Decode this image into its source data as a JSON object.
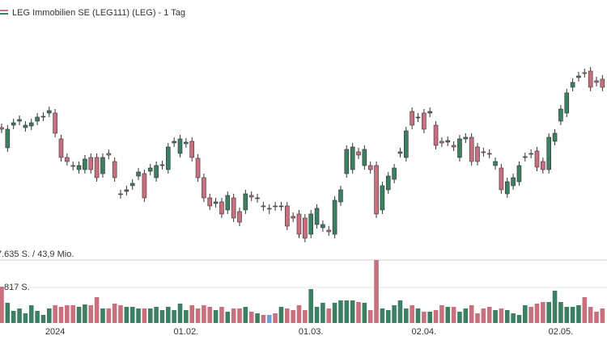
{
  "chart_data": {
    "type": "candlestick",
    "title": "LEG Immobilien SE (LEG111) (LEG) - 1 Tag",
    "categories": [
      null,
      null,
      null,
      null,
      null,
      null,
      null,
      null,
      null,
      "2024",
      null,
      null,
      null,
      null,
      null,
      null,
      null,
      null,
      null,
      null,
      null,
      null,
      null,
      null,
      null,
      null,
      null,
      null,
      null,
      null,
      null,
      "01.02.",
      null,
      null,
      null,
      null,
      null,
      null,
      null,
      null,
      null,
      null,
      null,
      null,
      null,
      null,
      null,
      null,
      null,
      null,
      null,
      null,
      "01.03.",
      null,
      null,
      null,
      null,
      null,
      null,
      null,
      null,
      null,
      null,
      null,
      null,
      null,
      null,
      null,
      null,
      null,
      null,
      "02.04.",
      null,
      null,
      null,
      null,
      null,
      null,
      null,
      null,
      null,
      null,
      null,
      null,
      null,
      null,
      null,
      null,
      null,
      null,
      null,
      null,
      null,
      null,
      "02.05.",
      null,
      null,
      null,
      null,
      null,
      null,
      null
    ],
    "open": [
      77.2,
      74.7,
      77.5,
      78.0,
      77.2,
      77.4,
      78.0,
      78.5,
      79.0,
      79.0,
      75.8,
      73.5,
      72.5,
      72.0,
      72.0,
      73.5,
      73.5,
      71.5,
      74.0,
      73.0,
      69.0,
      69.3,
      70.0,
      71.2,
      71.5,
      71.8,
      71.0,
      72.5,
      72.0,
      75.3,
      74.0,
      75.2,
      75.5,
      73.4,
      71.0,
      68.5,
      67.8,
      68.0,
      67.0,
      68.5,
      66.8,
      67.0,
      68.8,
      68.4,
      67.5,
      67.2,
      67.5,
      67.4,
      67.5,
      66.2,
      66.5,
      66.0,
      64.0,
      65.2,
      64.8,
      64.5,
      64.0,
      68.0,
      71.5,
      72.0,
      74.2,
      72.5,
      72.5,
      72.5,
      67.0,
      69.5,
      70.8,
      74.0,
      73.5,
      79.2,
      78.4,
      79.0,
      79.0,
      77.5,
      75.5,
      75.4,
      75.0,
      73.5,
      75.8,
      76.0,
      74.8,
      74.2,
      74.0,
      72.5,
      72.2,
      69.0,
      70.0,
      70.5,
      73.5,
      74.0,
      74.3,
      73.0,
      72.0,
      75.5,
      78.0,
      79.0,
      82.2,
      83.4,
      84.0,
      84.2,
      83.0,
      83.2
    ],
    "high": [
      77.7,
      77.5,
      78.3,
      78.7,
      78.0,
      78.3,
      79.0,
      79.1,
      79.8,
      79.5,
      76.3,
      74.0,
      73.0,
      73.0,
      73.8,
      74.0,
      74.0,
      74.0,
      74.5,
      73.5,
      69.5,
      70.0,
      70.8,
      72.2,
      72.0,
      72.7,
      73.0,
      73.1,
      75.3,
      76.0,
      76.3,
      75.9,
      76.0,
      73.9,
      71.5,
      69.0,
      68.5,
      68.5,
      69.3,
      69.0,
      67.3,
      69.5,
      69.3,
      69.0,
      68.0,
      67.7,
      68.0,
      68.0,
      68.0,
      66.7,
      67.0,
      66.5,
      67.0,
      67.7,
      65.7,
      65.0,
      68.7,
      70.0,
      75.0,
      75.3,
      74.7,
      75.0,
      73.0,
      73.0,
      70.5,
      71.7,
      72.7,
      74.7,
      77.3,
      79.7,
      79.0,
      79.5,
      79.7,
      78.0,
      76.0,
      76.1,
      75.5,
      76.3,
      76.5,
      76.5,
      75.3,
      74.7,
      74.5,
      73.5,
      72.7,
      71.0,
      71.5,
      73.0,
      74.1,
      74.5,
      74.8,
      73.5,
      76.5,
      77.0,
      80.0,
      82.0,
      83.3,
      84.1,
      84.5,
      84.7,
      83.5,
      83.7
    ],
    "low": [
      76.5,
      74.2,
      77.0,
      77.5,
      76.7,
      76.9,
      77.5,
      78.0,
      78.5,
      76.0,
      73.0,
      72.5,
      71.9,
      71.5,
      71.5,
      71.5,
      70.5,
      71.0,
      73.3,
      70.5,
      68.4,
      68.8,
      69.5,
      70.7,
      68.0,
      71.3,
      70.5,
      72.0,
      71.5,
      74.8,
      73.5,
      74.7,
      73.0,
      70.5,
      68.0,
      67.0,
      67.3,
      66.0,
      66.5,
      65.5,
      65.0,
      66.5,
      68.1,
      67.9,
      66.9,
      66.5,
      66.9,
      66.9,
      64.5,
      65.5,
      63.5,
      63.0,
      63.5,
      64.7,
      64.3,
      63.8,
      63.5,
      67.5,
      71.0,
      71.5,
      73.3,
      72.0,
      71.5,
      66.0,
      66.5,
      69.0,
      70.3,
      73.5,
      73.0,
      77.0,
      77.9,
      76.5,
      78.5,
      74.5,
      74.8,
      74.9,
      74.3,
      73.0,
      75.3,
      72.5,
      72.5,
      73.6,
      73.4,
      72.0,
      69.0,
      68.5,
      69.5,
      70.0,
      73.0,
      73.4,
      71.8,
      71.5,
      71.5,
      75.0,
      77.5,
      78.5,
      81.7,
      82.9,
      83.4,
      81.7,
      82.3,
      81.7
    ],
    "close": [
      77.0,
      77.0,
      77.8,
      78.2,
      77.5,
      77.8,
      78.5,
      78.6,
      79.3,
      76.5,
      73.5,
      73.0,
      72.4,
      72.5,
      73.3,
      72.0,
      71.0,
      73.5,
      73.8,
      71.0,
      68.9,
      69.5,
      70.3,
      71.7,
      68.5,
      72.2,
      72.5,
      72.6,
      74.8,
      75.5,
      75.8,
      75.4,
      73.5,
      71.0,
      68.5,
      67.5,
      68.0,
      66.5,
      68.8,
      66.0,
      65.5,
      69.0,
      68.6,
      68.5,
      67.4,
      67.2,
      67.4,
      67.5,
      65.0,
      66.0,
      64.0,
      63.5,
      66.5,
      67.2,
      65.2,
      64.3,
      68.2,
      69.5,
      74.5,
      74.8,
      73.8,
      74.5,
      72.0,
      66.5,
      70.0,
      71.2,
      72.2,
      74.2,
      76.8,
      77.5,
      78.5,
      77.0,
      79.2,
      75.0,
      75.3,
      75.6,
      74.8,
      75.8,
      76.0,
      73.0,
      73.0,
      74.1,
      73.9,
      73.0,
      69.5,
      70.5,
      71.0,
      72.5,
      73.6,
      73.9,
      72.3,
      72.0,
      76.0,
      76.5,
      79.5,
      81.5,
      82.8,
      83.6,
      83.9,
      82.2,
      82.8,
      82.2
    ],
    "ylim": [
      61,
      90
    ],
    "volume": [
      4410,
      2450,
      1470,
      1764,
      1176,
      2156,
      1470,
      980,
      1764,
      2156,
      1960,
      2156,
      2156,
      1960,
      2254,
      2156,
      3136,
      1764,
      1764,
      2352,
      2156,
      1960,
      1960,
      1764,
      1764,
      1764,
      1960,
      1568,
      1960,
      1568,
      2352,
      1568,
      2156,
      1764,
      2156,
      1960,
      1568,
      1960,
      1372,
      1764,
      1764,
      1960,
      1372,
      1176,
      980,
      980,
      1176,
      1960,
      1764,
      1568,
      2156,
      1568,
      4116,
      1960,
      2450,
      1764,
      2450,
      2744,
      2744,
      2744,
      2548,
      2450,
      1568,
      7635,
      1764,
      1568,
      2156,
      2744,
      1764,
      2156,
      1764,
      1372,
      1372,
      1568,
      2156,
      1960,
      1960,
      1372,
      1764,
      2156,
      1176,
      1764,
      1960,
      1568,
      1764,
      1568,
      1176,
      980,
      2156,
      1960,
      2352,
      2548,
      2548,
      3920,
      2548,
      1960,
      1960,
      2156,
      3136,
      1960,
      1372,
      1764
    ],
    "volume_ylim": [
      0,
      7635
    ],
    "annotations": [
      "7.635 S. / 43,9 Mio.",
      "817 S."
    ],
    "up_color": "#3d7f62",
    "down_color": "#c9707f",
    "flat_color": "#6f9fdc"
  }
}
